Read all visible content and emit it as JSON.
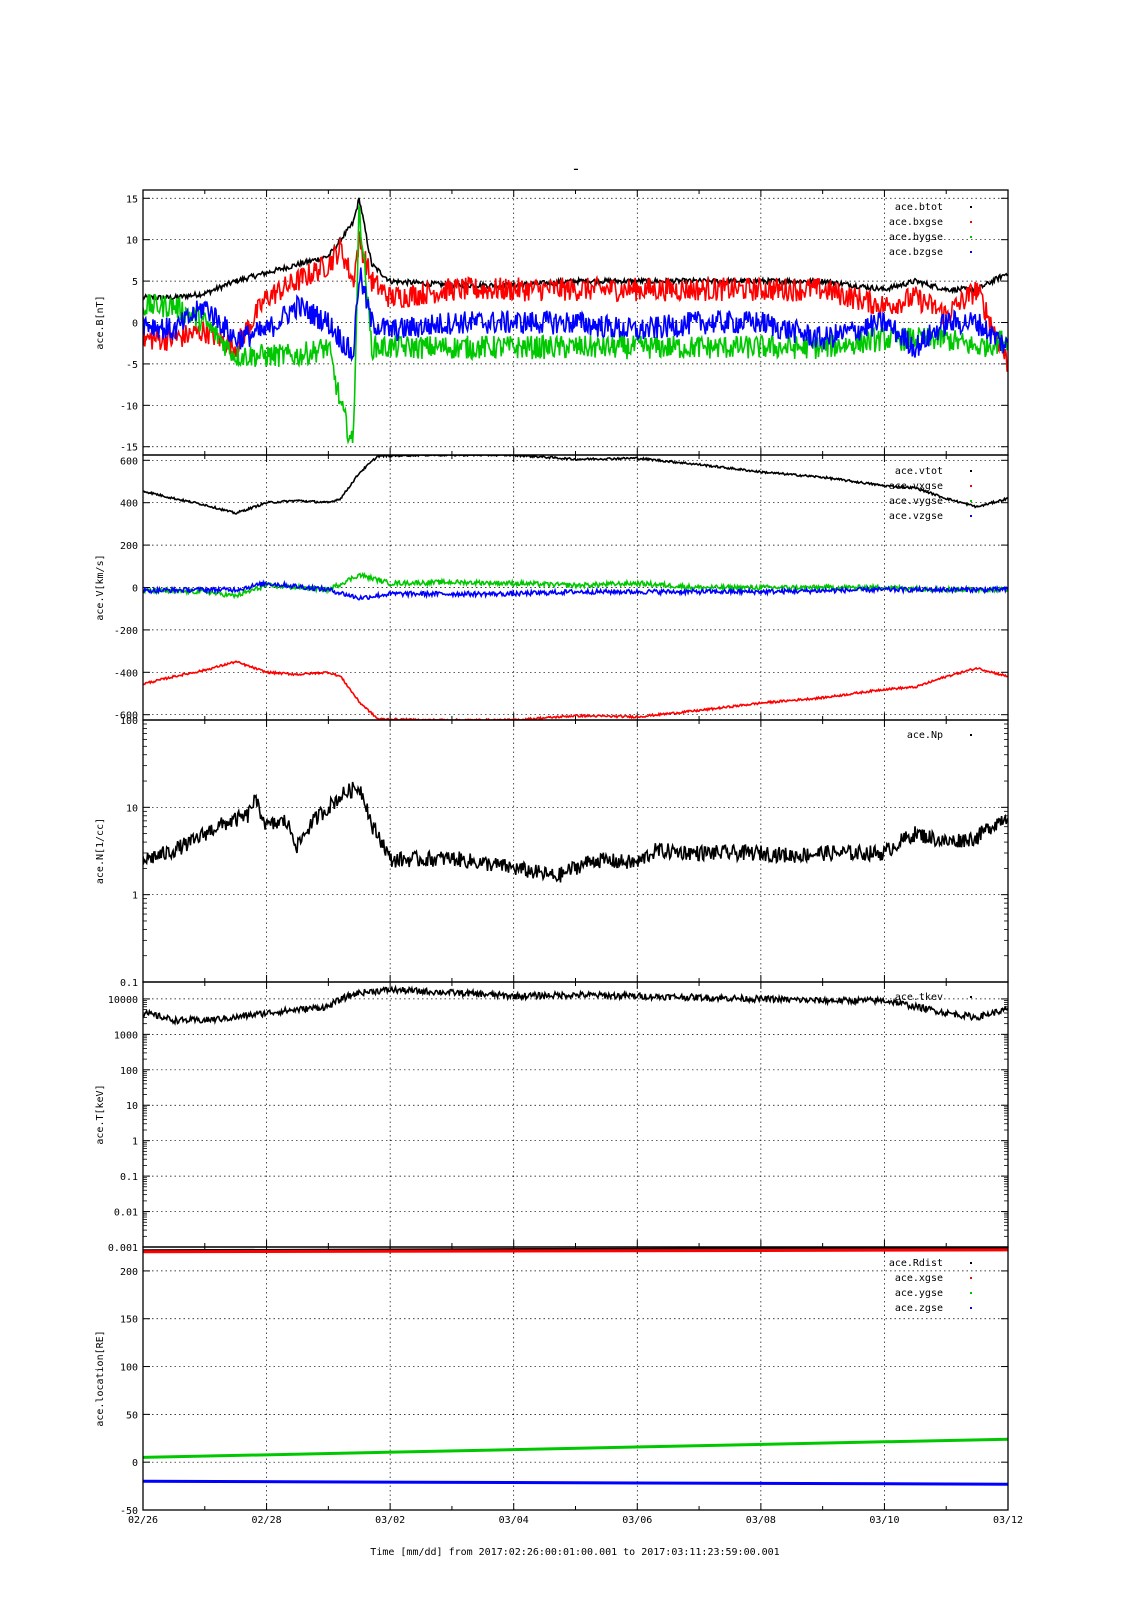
{
  "page": {
    "title": "-"
  },
  "time_axis": {
    "tick_labels": [
      "02/26",
      "02/28",
      "03/02",
      "03/04",
      "03/06",
      "03/08",
      "03/10",
      "03/12"
    ],
    "tick_days": [
      0,
      2,
      4,
      6,
      8,
      10,
      12,
      14
    ],
    "range_days": [
      0,
      14
    ],
    "label": "Time [mm/dd]  from 2017:02:26:00:01:00.001  to  2017:03:11:23:59:00.001"
  },
  "chart_data": [
    {
      "id": "B",
      "type": "scatter",
      "ylabel": "ace.B[nT]",
      "ylim": [
        -16,
        16
      ],
      "yscale": "linear",
      "yticks": [
        -15,
        -10,
        -5,
        0,
        5,
        10,
        15
      ],
      "grid": true,
      "legend_position": "top-right",
      "series": [
        {
          "name": "ace.btot",
          "color": "#000000",
          "x": [
            0,
            0.5,
            1,
            1.5,
            2,
            2.5,
            3,
            3.2,
            3.4,
            3.5,
            3.7,
            4,
            5,
            6,
            7,
            8,
            9,
            10,
            11,
            12,
            12.5,
            13,
            13.5,
            14
          ],
          "y": [
            3,
            3,
            3.5,
            5,
            6,
            7,
            8,
            10,
            12,
            15,
            7,
            5,
            4.5,
            4.5,
            5,
            5,
            5,
            5,
            5,
            4,
            5,
            4,
            4,
            6
          ]
        },
        {
          "name": "ace.bxgse",
          "color": "#ff0000",
          "x": [
            0,
            0.5,
            1,
            1.5,
            2,
            2.5,
            3,
            3.2,
            3.4,
            3.5,
            3.7,
            4,
            5,
            6,
            7,
            8,
            9,
            10,
            11,
            12,
            12.5,
            13,
            13.5,
            14
          ],
          "y": [
            -2,
            -2,
            -1,
            -3,
            3,
            5,
            7,
            9,
            5,
            10,
            5,
            3,
            4,
            4,
            4,
            4,
            4,
            4,
            4,
            2,
            3,
            1,
            4,
            -5
          ]
        },
        {
          "name": "ace.bygse",
          "color": "#00c800",
          "x": [
            0,
            0.5,
            1,
            1.5,
            2,
            2.5,
            3,
            3.2,
            3.4,
            3.5,
            3.7,
            4,
            5,
            6,
            7,
            8,
            9,
            10,
            11,
            12,
            12.5,
            13,
            13.5,
            14
          ],
          "y": [
            2,
            2,
            0,
            -4,
            -4,
            -4,
            -3,
            -10,
            -15,
            14,
            -3,
            -3,
            -3,
            -3,
            -3,
            -3,
            -3,
            -3,
            -3,
            -2,
            -2,
            -2,
            -3,
            -2
          ]
        },
        {
          "name": "ace.bzgse",
          "color": "#0000ff",
          "x": [
            0,
            0.5,
            1,
            1.5,
            2,
            2.5,
            3,
            3.2,
            3.4,
            3.5,
            3.7,
            4,
            5,
            6,
            7,
            8,
            9,
            10,
            11,
            12,
            12.5,
            13,
            13.5,
            14
          ],
          "y": [
            0,
            -1,
            2,
            -2,
            -1,
            2,
            0,
            -2,
            -4,
            6,
            0,
            -1,
            0,
            0,
            0,
            -1,
            0,
            0,
            -2,
            0,
            -3,
            0,
            0,
            -3
          ]
        }
      ]
    },
    {
      "id": "V",
      "type": "scatter",
      "ylabel": "ace.V[km/s]",
      "ylim": [
        -625,
        625
      ],
      "yscale": "linear",
      "yticks": [
        -600,
        -400,
        -200,
        0,
        200,
        400,
        600
      ],
      "grid": true,
      "legend_position": "top-right",
      "series": [
        {
          "name": "ace.vtot",
          "color": "#000000",
          "x": [
            0,
            0.5,
            1,
            1.5,
            2,
            2.5,
            3,
            3.2,
            3.5,
            3.8,
            4.5,
            5,
            6,
            7,
            8,
            9,
            10,
            11,
            12,
            12.5,
            13,
            13.5,
            14
          ],
          "y": [
            455,
            420,
            390,
            350,
            400,
            410,
            400,
            420,
            540,
            620,
            625,
            625,
            625,
            605,
            610,
            580,
            545,
            520,
            480,
            470,
            420,
            380,
            420
          ]
        },
        {
          "name": "ace.vxgse",
          "color": "#ff0000",
          "x": [
            0,
            0.5,
            1,
            1.5,
            2,
            2.5,
            3,
            3.2,
            3.5,
            3.8,
            4.5,
            5,
            6,
            7,
            8,
            9,
            10,
            11,
            12,
            12.5,
            13,
            13.5,
            14
          ],
          "y": [
            -455,
            -420,
            -390,
            -350,
            -400,
            -410,
            -400,
            -420,
            -540,
            -620,
            -625,
            -625,
            -625,
            -605,
            -610,
            -580,
            -545,
            -520,
            -480,
            -470,
            -420,
            -380,
            -420
          ]
        },
        {
          "name": "ace.vygse",
          "color": "#00c800",
          "x": [
            0,
            1,
            1.5,
            2,
            3,
            3.5,
            4,
            5,
            6,
            7,
            8,
            9,
            10,
            11,
            12,
            13,
            14
          ],
          "y": [
            -15,
            -20,
            -40,
            10,
            -10,
            60,
            20,
            25,
            20,
            10,
            20,
            0,
            0,
            0,
            0,
            -10,
            -10
          ]
        },
        {
          "name": "ace.vzgse",
          "color": "#0000ff",
          "x": [
            0,
            1,
            1.5,
            2,
            3,
            3.5,
            4,
            5,
            6,
            7,
            8,
            9,
            10,
            11,
            12,
            13,
            14
          ],
          "y": [
            -15,
            -10,
            -10,
            20,
            -10,
            -50,
            -30,
            -30,
            -30,
            -20,
            -20,
            -20,
            -20,
            -15,
            -10,
            -10,
            -10
          ]
        }
      ]
    },
    {
      "id": "N",
      "type": "scatter",
      "ylabel": "ace.N[1/cc]",
      "ylim": [
        0.1,
        100
      ],
      "yscale": "log",
      "ytick_labels": [
        "0.1",
        "1",
        "10",
        "100"
      ],
      "ytick_values": [
        0.1,
        1,
        10,
        100
      ],
      "grid": true,
      "legend_position": "top-right",
      "series": [
        {
          "name": "ace.Np",
          "color": "#000000",
          "x": [
            0,
            0.4,
            0.8,
            1.2,
            1.7,
            1.8,
            2,
            2.3,
            2.5,
            3,
            3.3,
            3.5,
            3.7,
            4,
            5,
            6.7,
            7.3,
            8,
            8.3,
            9,
            10,
            10.5,
            11,
            12,
            12.5,
            13,
            13.5,
            14
          ],
          "y": [
            2.5,
            3,
            4,
            6,
            8,
            12,
            6,
            7,
            3.5,
            10,
            15,
            17,
            6,
            2.5,
            2.6,
            1.6,
            2.5,
            2.3,
            3.2,
            3,
            3,
            2.8,
            3,
            3,
            5,
            4,
            4.5,
            8
          ]
        }
      ]
    },
    {
      "id": "T",
      "type": "scatter",
      "ylabel": "ace.T[keV]",
      "ylim": [
        0.001,
        30000
      ],
      "yscale": "log",
      "ytick_labels": [
        "0.001",
        "0.01",
        "0.1",
        "1",
        "10",
        "100",
        "1000",
        "10000"
      ],
      "ytick_values": [
        0.001,
        0.01,
        0.1,
        1,
        10,
        100,
        1000,
        10000
      ],
      "grid": true,
      "legend_position": "top-right",
      "series": [
        {
          "name": "ace.tkev",
          "color": "#000000",
          "x": [
            0,
            0.5,
            1,
            1.5,
            2,
            2.5,
            3,
            3.5,
            4,
            5,
            6,
            7,
            8,
            9,
            10,
            11,
            12,
            12.5,
            13,
            13.5,
            14
          ],
          "y": [
            4000,
            2500,
            2500,
            3000,
            4000,
            5000,
            6000,
            15000,
            18000,
            15000,
            12000,
            13000,
            12000,
            11000,
            10000,
            9000,
            9000,
            6000,
            4000,
            3000,
            5000
          ]
        }
      ]
    },
    {
      "id": "location",
      "type": "line",
      "ylabel": "ace.location[RE]",
      "ylim": [
        -50,
        225
      ],
      "yscale": "linear",
      "yticks": [
        -50,
        0,
        50,
        100,
        150,
        200
      ],
      "grid": true,
      "legend_position": "top-right",
      "series": [
        {
          "name": "ace.Rdist",
          "color": "#000000",
          "x": [
            0,
            14
          ],
          "y": [
            221,
            224
          ]
        },
        {
          "name": "ace.xgse",
          "color": "#ff0000",
          "x": [
            0,
            14
          ],
          "y": [
            220,
            222
          ]
        },
        {
          "name": "ace.ygse",
          "color": "#00c800",
          "x": [
            0,
            14
          ],
          "y": [
            5,
            24
          ]
        },
        {
          "name": "ace.zgse",
          "color": "#0000ff",
          "x": [
            0,
            14
          ],
          "y": [
            -20,
            -23
          ]
        }
      ]
    }
  ]
}
